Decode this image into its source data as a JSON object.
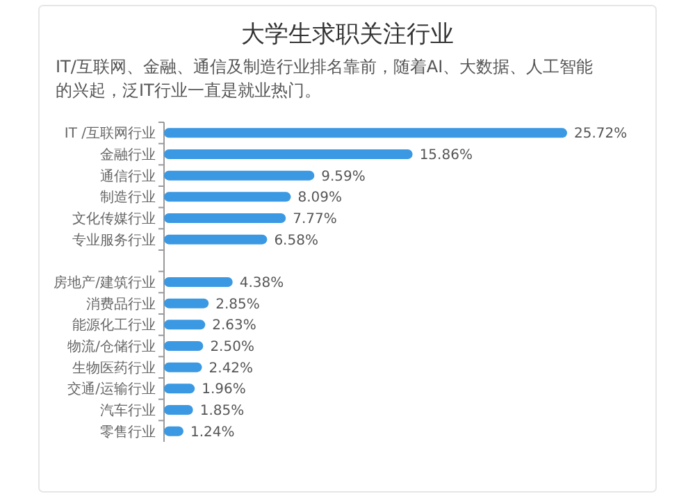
{
  "chart_data": {
    "type": "bar",
    "orientation": "horizontal",
    "title": "大学生求职关注行业",
    "subtitle": "IT/互联网、金融、通信及制造行业排名靠前，随着AI、大数据、人工智能的兴起，泛IT行业一直是就业热门。",
    "categories": [
      "IT /互联网行业",
      "金融行业",
      "通信行业",
      "制造行业",
      "文化传媒行业",
      "专业服务行业",
      null,
      "房地产/建筑行业",
      "消费品行业",
      "能源化工行业",
      "物流/仓储行业",
      "生物医药行业",
      "交通/运输行业",
      "汽车行业",
      "零售行业"
    ],
    "values": [
      25.72,
      15.86,
      9.59,
      8.09,
      7.77,
      6.58,
      null,
      4.38,
      2.85,
      2.63,
      2.5,
      2.42,
      1.96,
      1.85,
      1.24
    ],
    "value_labels": [
      "25.72%",
      "15.86%",
      "9.59%",
      "8.09%",
      "7.77%",
      "6.58%",
      null,
      "4.38%",
      "2.85%",
      "2.63%",
      "2.50%",
      "2.42%",
      "1.96%",
      "1.85%",
      "1.24%"
    ],
    "color": "#3b99e3",
    "tick_labels": "y"
  }
}
